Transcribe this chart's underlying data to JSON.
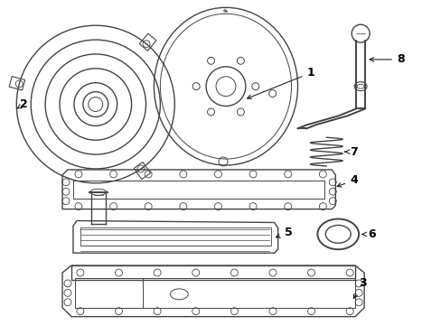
{
  "bg_color": "#ffffff",
  "line_color": "#444444",
  "label_color": "#000000",
  "lw": 1.0,
  "lw_thick": 1.4
}
